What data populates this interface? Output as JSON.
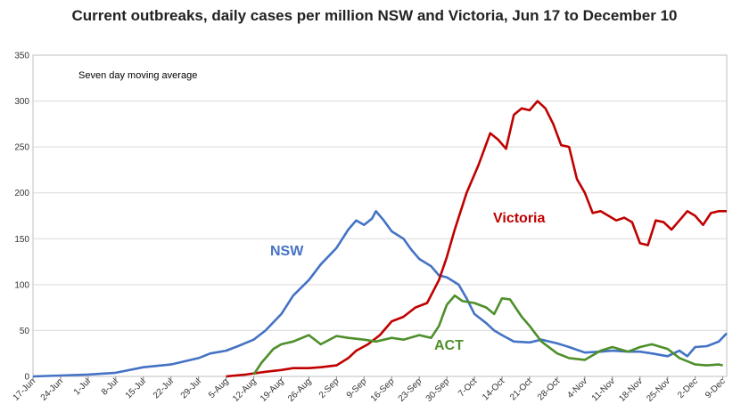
{
  "chart_data": {
    "type": "line",
    "title": "Current outbreaks, daily cases per million NSW and Victoria, Jun 17 to December 10",
    "annotation": "Seven day moving average",
    "xlabel": "",
    "ylabel": "",
    "ylim": [
      0,
      350
    ],
    "yticks": [
      0,
      50,
      100,
      150,
      200,
      250,
      300,
      350
    ],
    "x_tick_labels": [
      "17-Jun",
      "24-Jun",
      "1-Jul",
      "8-Jul",
      "15-Jul",
      "22-Jul",
      "29-Jul",
      "5-Aug",
      "12-Aug",
      "19-Aug",
      "26-Aug",
      "2-Sep",
      "9-Sep",
      "16-Sep",
      "23-Sep",
      "30-Sep",
      "7-Oct",
      "14-Oct",
      "21-Oct",
      "28-Oct",
      "4-Nov",
      "11-Nov",
      "18-Nov",
      "25-Nov",
      "2-Dec",
      "9-Dec"
    ],
    "grid": "horizontal",
    "legend": "none",
    "series": [
      {
        "name": "NSW",
        "color": "#4472C4",
        "points": [
          [
            "17-Jun",
            0
          ],
          [
            "24-Jun",
            1
          ],
          [
            "1-Jul",
            2
          ],
          [
            "8-Jul",
            4
          ],
          [
            "15-Jul",
            10
          ],
          [
            "22-Jul",
            13
          ],
          [
            "29-Jul",
            20
          ],
          [
            "1-Aug",
            25
          ],
          [
            "5-Aug",
            28
          ],
          [
            "8-Aug",
            33
          ],
          [
            "12-Aug",
            40
          ],
          [
            "15-Aug",
            50
          ],
          [
            "19-Aug",
            68
          ],
          [
            "22-Aug",
            88
          ],
          [
            "26-Aug",
            105
          ],
          [
            "29-Aug",
            122
          ],
          [
            "2-Sep",
            140
          ],
          [
            "5-Sep",
            160
          ],
          [
            "7-Sep",
            170
          ],
          [
            "9-Sep",
            165
          ],
          [
            "11-Sep",
            172
          ],
          [
            "12-Sep",
            180
          ],
          [
            "14-Sep",
            170
          ],
          [
            "16-Sep",
            158
          ],
          [
            "19-Sep",
            150
          ],
          [
            "21-Sep",
            138
          ],
          [
            "23-Sep",
            128
          ],
          [
            "26-Sep",
            120
          ],
          [
            "28-Sep",
            110
          ],
          [
            "30-Sep",
            108
          ],
          [
            "3-Oct",
            100
          ],
          [
            "5-Oct",
            85
          ],
          [
            "7-Oct",
            68
          ],
          [
            "10-Oct",
            58
          ],
          [
            "12-Oct",
            50
          ],
          [
            "14-Oct",
            45
          ],
          [
            "17-Oct",
            38
          ],
          [
            "21-Oct",
            37
          ],
          [
            "24-Oct",
            40
          ],
          [
            "28-Oct",
            36
          ],
          [
            "31-Oct",
            32
          ],
          [
            "4-Nov",
            26
          ],
          [
            "8-Nov",
            27
          ],
          [
            "11-Nov",
            28
          ],
          [
            "15-Nov",
            27
          ],
          [
            "18-Nov",
            27
          ],
          [
            "21-Nov",
            25
          ],
          [
            "25-Nov",
            22
          ],
          [
            "28-Nov",
            28
          ],
          [
            "30-Nov",
            22
          ],
          [
            "2-Dec",
            32
          ],
          [
            "5-Dec",
            33
          ],
          [
            "8-Dec",
            38
          ],
          [
            "10-Dec",
            47
          ]
        ]
      },
      {
        "name": "Victoria",
        "color": "#C00000",
        "points": [
          [
            "5-Aug",
            0
          ],
          [
            "10-Aug",
            2
          ],
          [
            "15-Aug",
            5
          ],
          [
            "19-Aug",
            7
          ],
          [
            "22-Aug",
            9
          ],
          [
            "26-Aug",
            9
          ],
          [
            "29-Aug",
            10
          ],
          [
            "2-Sep",
            12
          ],
          [
            "5-Sep",
            20
          ],
          [
            "7-Sep",
            28
          ],
          [
            "10-Sep",
            35
          ],
          [
            "13-Sep",
            45
          ],
          [
            "16-Sep",
            60
          ],
          [
            "19-Sep",
            65
          ],
          [
            "22-Sep",
            75
          ],
          [
            "25-Sep",
            80
          ],
          [
            "28-Sep",
            105
          ],
          [
            "30-Sep",
            130
          ],
          [
            "2-Oct",
            160
          ],
          [
            "5-Oct",
            200
          ],
          [
            "8-Oct",
            230
          ],
          [
            "11-Oct",
            265
          ],
          [
            "13-Oct",
            258
          ],
          [
            "15-Oct",
            248
          ],
          [
            "17-Oct",
            285
          ],
          [
            "19-Oct",
            292
          ],
          [
            "21-Oct",
            290
          ],
          [
            "23-Oct",
            300
          ],
          [
            "25-Oct",
            292
          ],
          [
            "27-Oct",
            275
          ],
          [
            "29-Oct",
            252
          ],
          [
            "31-Oct",
            250
          ],
          [
            "2-Nov",
            215
          ],
          [
            "4-Nov",
            200
          ],
          [
            "6-Nov",
            178
          ],
          [
            "8-Nov",
            180
          ],
          [
            "10-Nov",
            175
          ],
          [
            "12-Nov",
            170
          ],
          [
            "14-Nov",
            173
          ],
          [
            "16-Nov",
            168
          ],
          [
            "18-Nov",
            145
          ],
          [
            "20-Nov",
            143
          ],
          [
            "22-Nov",
            170
          ],
          [
            "24-Nov",
            168
          ],
          [
            "26-Nov",
            160
          ],
          [
            "28-Nov",
            170
          ],
          [
            "30-Nov",
            180
          ],
          [
            "2-Dec",
            175
          ],
          [
            "4-Dec",
            165
          ],
          [
            "6-Dec",
            178
          ],
          [
            "8-Dec",
            180
          ],
          [
            "10-Dec",
            180
          ]
        ]
      },
      {
        "name": "ACT",
        "color": "#4E8F2A",
        "points": [
          [
            "12-Aug",
            2
          ],
          [
            "14-Aug",
            15
          ],
          [
            "17-Aug",
            30
          ],
          [
            "19-Aug",
            35
          ],
          [
            "22-Aug",
            38
          ],
          [
            "26-Aug",
            45
          ],
          [
            "29-Aug",
            35
          ],
          [
            "2-Sep",
            44
          ],
          [
            "5-Sep",
            42
          ],
          [
            "9-Sep",
            40
          ],
          [
            "12-Sep",
            38
          ],
          [
            "16-Sep",
            42
          ],
          [
            "19-Sep",
            40
          ],
          [
            "23-Sep",
            45
          ],
          [
            "26-Sep",
            42
          ],
          [
            "28-Sep",
            55
          ],
          [
            "30-Sep",
            78
          ],
          [
            "2-Oct",
            88
          ],
          [
            "4-Oct",
            82
          ],
          [
            "7-Oct",
            80
          ],
          [
            "10-Oct",
            75
          ],
          [
            "12-Oct",
            68
          ],
          [
            "14-Oct",
            85
          ],
          [
            "16-Oct",
            84
          ],
          [
            "19-Oct",
            65
          ],
          [
            "21-Oct",
            55
          ],
          [
            "24-Oct",
            38
          ],
          [
            "28-Oct",
            25
          ],
          [
            "31-Oct",
            20
          ],
          [
            "4-Nov",
            18
          ],
          [
            "8-Nov",
            28
          ],
          [
            "11-Nov",
            32
          ],
          [
            "15-Nov",
            27
          ],
          [
            "18-Nov",
            32
          ],
          [
            "21-Nov",
            35
          ],
          [
            "25-Nov",
            30
          ],
          [
            "28-Nov",
            20
          ],
          [
            "2-Dec",
            13
          ],
          [
            "5-Dec",
            12
          ],
          [
            "8-Dec",
            13
          ],
          [
            "9-Dec",
            12
          ]
        ]
      }
    ]
  }
}
